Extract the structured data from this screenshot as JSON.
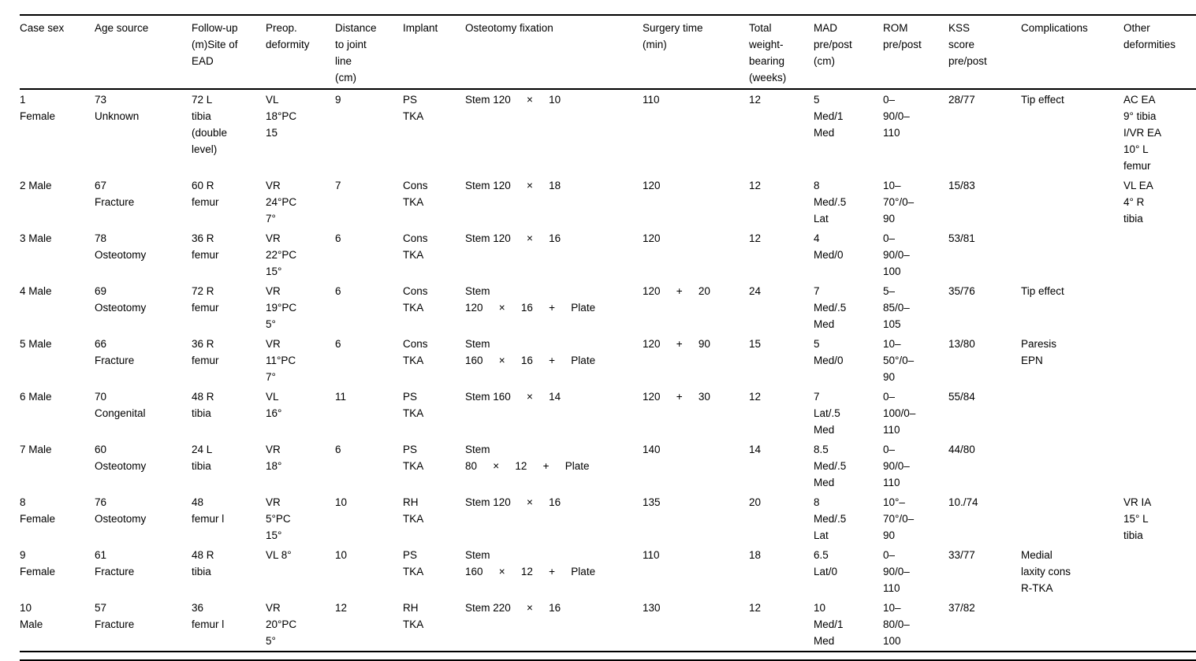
{
  "table": {
    "columns": [
      "Case sex",
      "Age source",
      "Follow-up\n(m)Site of\nEAD",
      "Preop.\ndeformity",
      "Distance\nto joint\nline\n(cm)",
      "Implant",
      "Osteotomy fixation",
      "Surgery time\n(min)",
      "Total\nweight-\nbearing\n(weeks)",
      "MAD\npre/post\n(cm)",
      "ROM\npre/post",
      "KSS\nscore\npre/post",
      "Complications",
      "Other\ndeformities"
    ],
    "rows": [
      [
        "1\nFemale",
        "73\nUnknown",
        "72 L\ntibia\n(double\nlevel)",
        "VL\n18°PC\n15",
        "9",
        "PS\nTKA",
        "Stem 120  ×  10",
        "110",
        "12",
        "5\nMed/1\nMed",
        "0–\n90/0–\n110",
        "28/77",
        "Tip effect",
        "AC EA\n9° tibia\nI/VR EA\n10° L\nfemur"
      ],
      [
        "2 Male",
        "67\nFracture",
        "60 R\nfemur",
        "VR\n24°PC\n7°",
        "7",
        "Cons\nTKA",
        "Stem 120  ×  18",
        "120",
        "12",
        "8\nMed/.5\nLat",
        "10–\n70°/0–\n90",
        "15/83",
        "",
        "VL EA\n4° R\ntibia"
      ],
      [
        "3 Male",
        "78\nOsteotomy",
        "36 R\nfemur",
        "VR\n22°PC\n15°",
        "6",
        "Cons\nTKA",
        "Stem 120  ×  16",
        "120",
        "12",
        "4\nMed/0",
        "0–\n90/0–\n100",
        "53/81",
        "",
        ""
      ],
      [
        "4 Male",
        "69\nOsteotomy",
        "72 R\nfemur",
        "VR\n19°PC\n5°",
        "6",
        "Cons\nTKA",
        "Stem\n120  ×  16  +  Plate",
        "120  +  20",
        "24",
        "7\nMed/.5\nMed",
        "5–\n85/0–\n105",
        "35/76",
        "Tip effect",
        ""
      ],
      [
        "5 Male",
        "66\nFracture",
        "36 R\nfemur",
        "VR\n11°PC\n7°",
        "6",
        "Cons\nTKA",
        "Stem\n160  ×  16  +  Plate",
        "120  +  90",
        "15",
        "5\nMed/0",
        "10–\n50°/0–\n90",
        "13/80",
        "Paresis\nEPN",
        ""
      ],
      [
        "6 Male",
        "70\nCongenital",
        "48 R\ntibia",
        "VL\n16°",
        "11",
        "PS\nTKA",
        "Stem 160  ×  14",
        "120  +  30",
        "12",
        "7\nLat/.5\nMed",
        "0–\n100/0–\n110",
        "55/84",
        "",
        ""
      ],
      [
        "7 Male",
        "60\nOsteotomy",
        "24 L\ntibia",
        "VR\n18°",
        "6",
        "PS\nTKA",
        "Stem\n80  ×  12  +  Plate",
        "140",
        "14",
        "8.5\nMed/.5\nMed",
        "0–\n90/0–\n110",
        "44/80",
        "",
        ""
      ],
      [
        "8\nFemale",
        "76\nOsteotomy",
        "48\nfemur l",
        "VR\n5°PC\n15°",
        "10",
        "RH\nTKA",
        "Stem 120  ×  16",
        "135",
        "20",
        "8\nMed/.5\nLat",
        "10°–\n70°/0–\n90",
        "10./74",
        "",
        "VR IA\n15° L\ntibia"
      ],
      [
        "9\nFemale",
        "61\nFracture",
        "48 R\ntibia",
        "VL 8°",
        "10",
        "PS\nTKA",
        "Stem\n160  ×  12  +  Plate",
        "110",
        "18",
        "6.5\nLat/0",
        "0–\n90/0–\n110",
        "33/77",
        "Medial\nlaxity cons\nR-TKA",
        ""
      ],
      [
        "10\nMale",
        "57\nFracture",
        "36\nfemur l",
        "VR\n20°PC\n5°",
        "12",
        "RH\nTKA",
        "Stem 220  ×  16",
        "130",
        "12",
        "10\nMed/1\nMed",
        "10–\n80/0–\n100",
        "37/82",
        "",
        ""
      ]
    ]
  }
}
